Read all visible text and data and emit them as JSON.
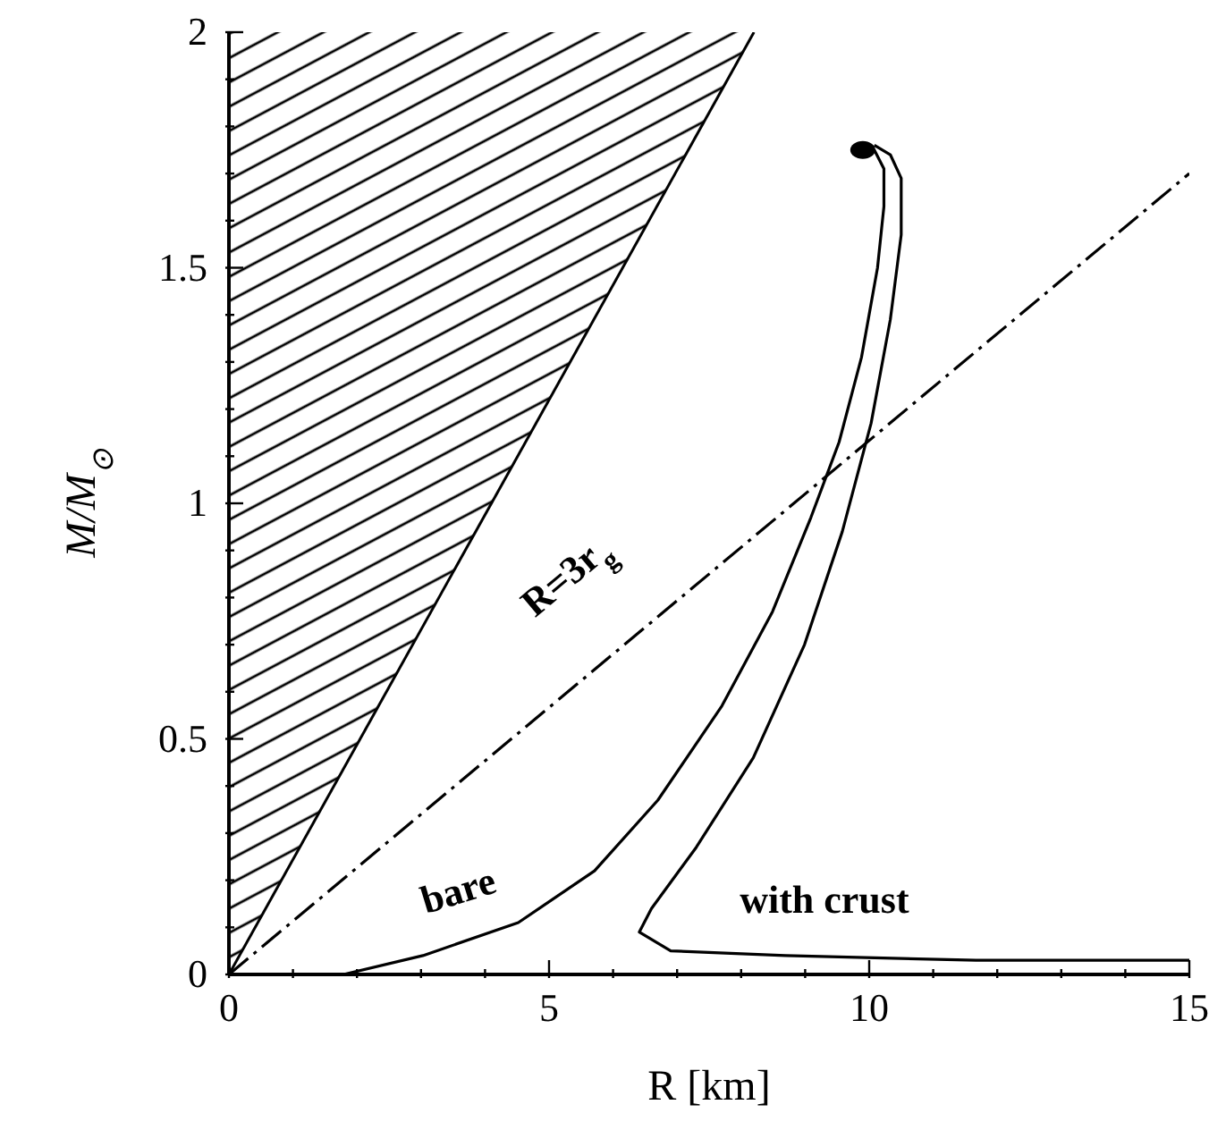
{
  "chart_data": {
    "type": "line",
    "xlabel": "R [km]",
    "ylabel": "M/M$_{⊙}$",
    "xlim": [
      0,
      15
    ],
    "ylim": [
      0,
      2
    ],
    "xticks": [
      0,
      {
        "value": 1,
        "label": null
      },
      {
        "value": 2,
        "label": null
      },
      {
        "value": 3,
        "label": null
      },
      {
        "value": 4,
        "label": null
      },
      5,
      {
        "value": 6,
        "label": null
      },
      {
        "value": 7,
        "label": null
      },
      {
        "value": 8,
        "label": null
      },
      {
        "value": 9,
        "label": null
      },
      10,
      {
        "value": 11,
        "label": null
      },
      {
        "value": 12,
        "label": null
      },
      {
        "value": 13,
        "label": null
      },
      {
        "value": 14,
        "label": null
      },
      15
    ],
    "yticks": [
      0,
      {
        "value": 0.1,
        "label": null
      },
      {
        "value": 0.2,
        "label": null
      },
      {
        "value": 0.3,
        "label": null
      },
      {
        "value": 0.4,
        "label": null
      },
      0.5,
      {
        "value": 0.6,
        "label": null
      },
      {
        "value": 0.7,
        "label": null
      },
      {
        "value": 0.8,
        "label": null
      },
      {
        "value": 0.9,
        "label": null
      },
      1,
      {
        "value": 1.1,
        "label": null
      },
      {
        "value": 1.2,
        "label": null
      },
      {
        "value": 1.3,
        "label": null
      },
      {
        "value": 1.4,
        "label": null
      },
      1.5,
      {
        "value": 1.6,
        "label": null
      },
      {
        "value": 1.7,
        "label": null
      },
      {
        "value": 1.8,
        "label": null
      },
      {
        "value": 1.9,
        "label": null
      },
      2
    ],
    "grid": false,
    "legend": false,
    "series": [
      {
        "type": "area",
        "color": "#000000",
        "x": [
          0,
          8.2
        ],
        "values": [
          0,
          2
        ]
      },
      {
        "color": "#000000",
        "line_style": "dashed",
        "marker": "none",
        "x": [
          0,
          15
        ],
        "values": [
          0,
          1.7
        ]
      },
      {
        "color": "#000000",
        "line_style": "solid",
        "marker": "none",
        "x": [
          1.79,
          3.03,
          4.52,
          5.71,
          6.7,
          7.7,
          8.49,
          9.09,
          9.53,
          9.88,
          10.13,
          10.23,
          10.23,
          10.08,
          9.88
        ],
        "values": [
          0,
          0.04,
          0.11,
          0.22,
          0.37,
          0.57,
          0.77,
          0.97,
          1.13,
          1.31,
          1.5,
          1.63,
          1.71,
          1.75,
          1.75
        ]
      },
      {
        "color": "#000000",
        "line_style": "solid",
        "marker": "none",
        "x": [
          15,
          11.67,
          8.69,
          6.9,
          6.41,
          6.6,
          7.3,
          8.19,
          8.99,
          9.58,
          10.03,
          10.33,
          10.5,
          10.5,
          10.33,
          10.08
        ],
        "values": [
          0.03,
          0.03,
          0.04,
          0.05,
          0.09,
          0.14,
          0.27,
          0.46,
          0.7,
          0.94,
          1.17,
          1.39,
          1.57,
          1.69,
          1.74,
          1.76
        ]
      },
      {
        "type": "scatter",
        "color": "#000000",
        "marker": "circle",
        "x": [
          9.9
        ],
        "values": [
          1.75
        ]
      }
    ],
    "annotations": [
      "bare",
      "with crust",
      "R=3r$_{g}$"
    ]
  }
}
